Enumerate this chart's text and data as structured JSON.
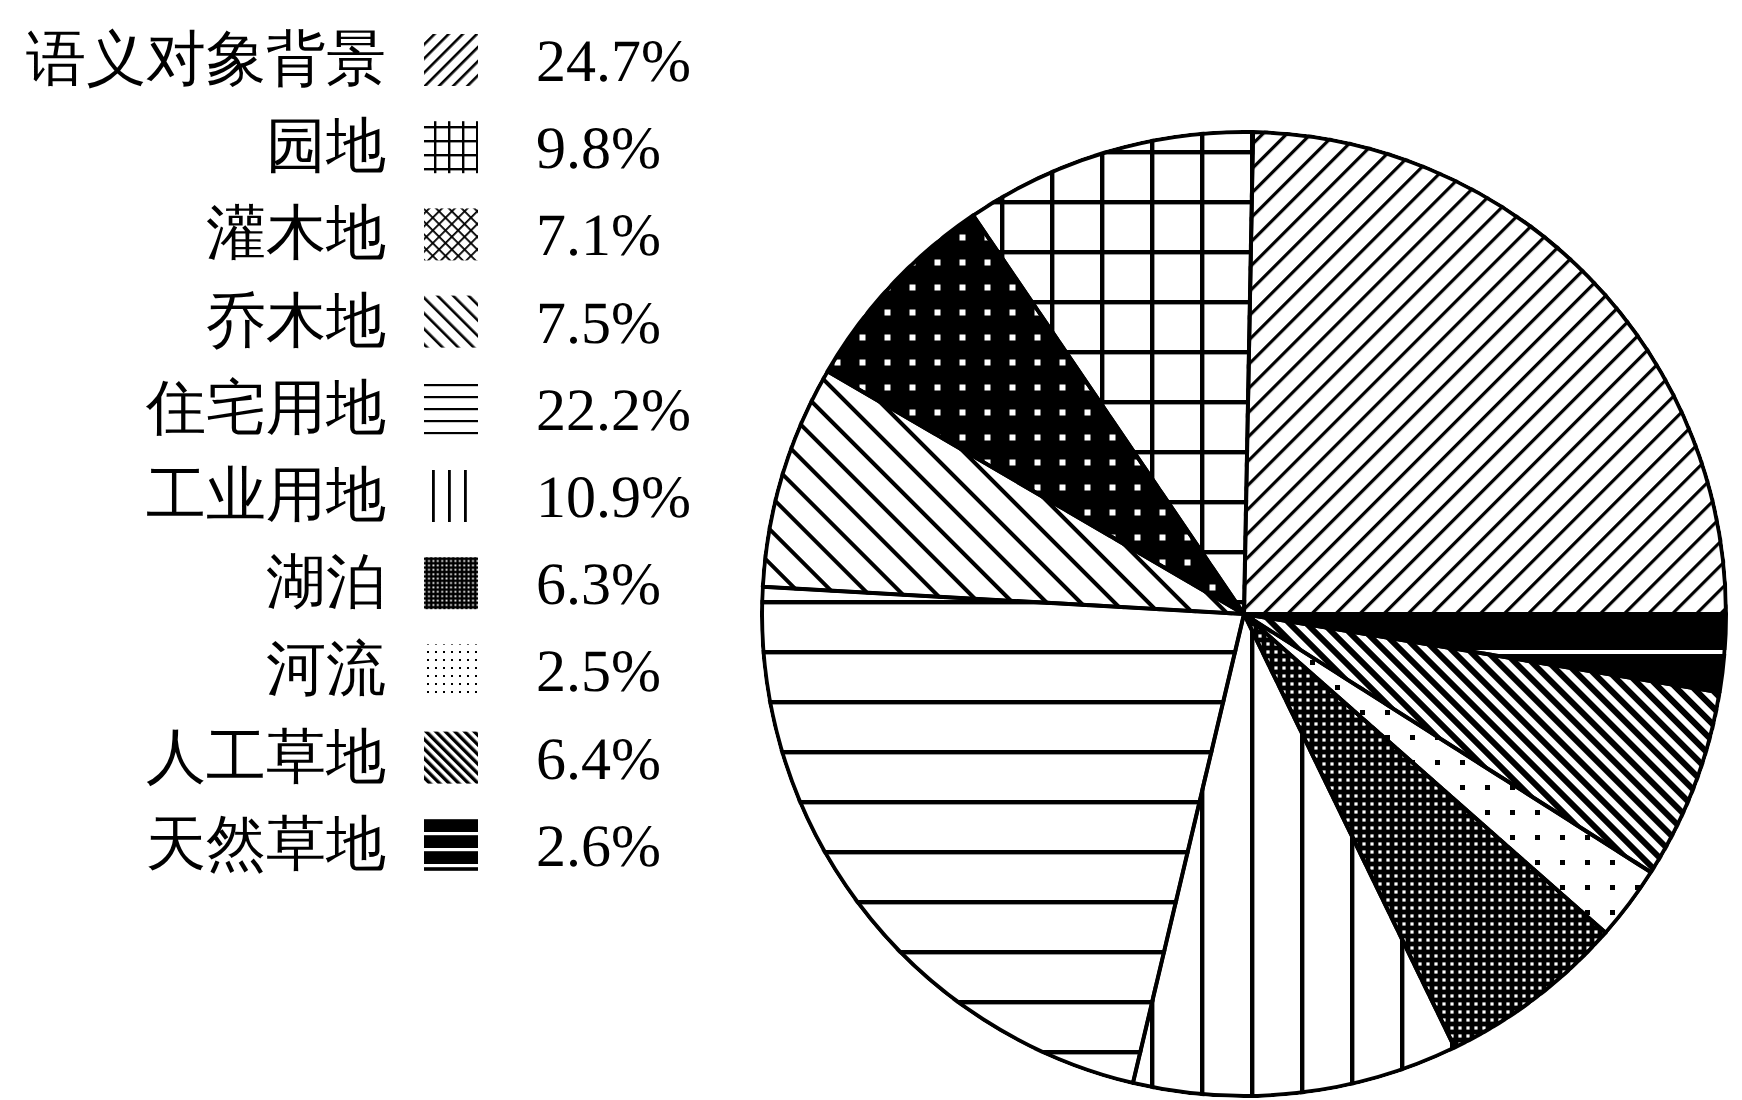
{
  "chart_data": {
    "type": "pie",
    "categories": [
      "语义对象背景",
      "园地",
      "灌木地",
      "乔木地",
      "住宅用地",
      "工业用地",
      "湖泊",
      "河流",
      "人工草地",
      "天然草地"
    ],
    "values": [
      24.7,
      9.8,
      7.1,
      7.5,
      22.2,
      10.9,
      6.3,
      2.5,
      6.4,
      2.6
    ],
    "colors": [
      "#000000",
      "#000000",
      "#000000",
      "#000000",
      "#000000",
      "#000000",
      "#000000",
      "#000000",
      "#000000",
      "#000000"
    ],
    "value_labels": [
      "24.7%",
      "9.8%",
      "7.1%",
      "7.5%",
      "22.2%",
      "10.9%",
      "6.3%",
      "2.5%",
      "6.4%",
      "2.6%"
    ],
    "legend": "top left"
  }
}
